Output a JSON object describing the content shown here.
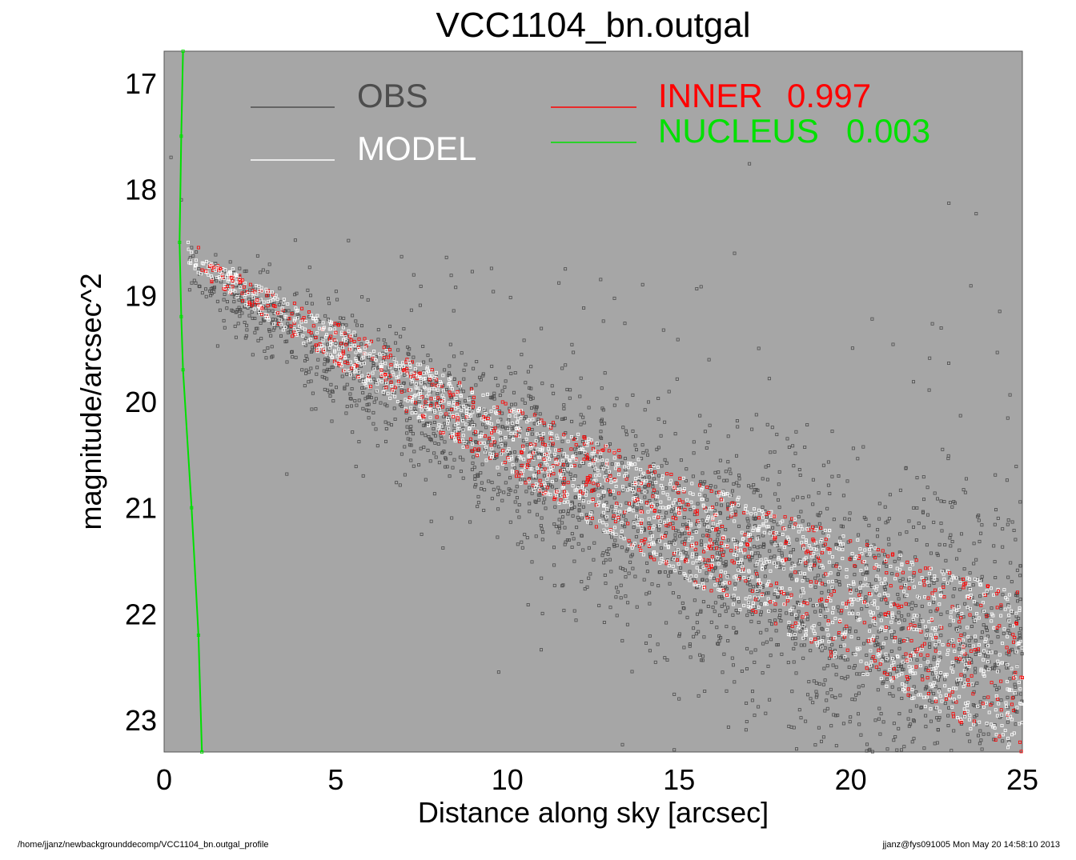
{
  "chart_data": {
    "type": "scatter",
    "title": "VCC1104_bn.outgal",
    "xlabel": "Distance along sky [arcsec]",
    "ylabel": "magnitude/arcsec^2",
    "xlim": [
      0,
      25
    ],
    "ylim": [
      16.7,
      23.3
    ],
    "y_inverted": true,
    "xticks": [
      0,
      5,
      10,
      15,
      20,
      25
    ],
    "yticks": [
      17,
      18,
      19,
      20,
      21,
      22,
      23
    ],
    "background": "#a6a6a6",
    "legend": [
      {
        "name": "OBS",
        "color": "#4d4d4d"
      },
      {
        "name": "MODEL",
        "color": "#ffffff"
      },
      {
        "name": "INNER",
        "value": "0.997",
        "color": "#ff0000"
      },
      {
        "name": "NUCLEUS",
        "value": "0.003",
        "color": "#00e000"
      }
    ],
    "series": [
      {
        "name": "OBS",
        "color": "#4d4d4d",
        "points": [
          [
            0.2,
            17.7
          ],
          [
            0.5,
            18.1
          ],
          [
            0.8,
            18.55
          ],
          [
            1.5,
            18.7
          ],
          [
            2.5,
            18.95
          ],
          [
            3.5,
            19.15
          ],
          [
            5,
            19.45
          ],
          [
            7,
            19.75
          ],
          [
            10,
            20.25
          ],
          [
            12,
            20.55
          ],
          [
            14,
            20.9
          ],
          [
            16,
            21.15
          ],
          [
            18,
            21.45
          ],
          [
            20,
            21.75
          ],
          [
            22,
            22.1
          ],
          [
            24,
            22.4
          ],
          [
            25,
            22.6
          ],
          [
            4.1,
            19.85
          ],
          [
            5.8,
            20.7
          ],
          [
            7.5,
            21.25
          ],
          [
            11,
            21.2
          ],
          [
            13.5,
            22.1
          ],
          [
            15,
            22.8
          ],
          [
            19.5,
            22.95
          ],
          [
            23,
            23.1
          ],
          [
            24.8,
            21.3
          ],
          [
            22.9,
            20.95
          ]
        ]
      },
      {
        "name": "MODEL",
        "color": "#ffffff",
        "points": [
          [
            0.7,
            18.5
          ],
          [
            2,
            18.75
          ],
          [
            4,
            19.25
          ],
          [
            6,
            19.55
          ],
          [
            8,
            19.85
          ],
          [
            10,
            20.2
          ],
          [
            12,
            20.55
          ],
          [
            14,
            20.85
          ],
          [
            16,
            21.15
          ],
          [
            18,
            21.5
          ],
          [
            20,
            21.8
          ],
          [
            22,
            22.15
          ],
          [
            24,
            22.45
          ],
          [
            25,
            22.6
          ]
        ]
      },
      {
        "name": "INNER",
        "color": "#ff0000",
        "points": [
          [
            1,
            18.55
          ],
          [
            3,
            19.0
          ],
          [
            5,
            19.35
          ],
          [
            7,
            19.7
          ],
          [
            9,
            20.05
          ],
          [
            11,
            20.35
          ],
          [
            13,
            20.7
          ],
          [
            15,
            21.05
          ],
          [
            17,
            21.35
          ],
          [
            19,
            21.7
          ],
          [
            21,
            22.0
          ],
          [
            23,
            22.3
          ],
          [
            25,
            22.6
          ]
        ]
      },
      {
        "name": "NUCLEUS",
        "color": "#00e000",
        "points": [
          [
            0.55,
            16.7
          ],
          [
            0.5,
            17.5
          ],
          [
            0.45,
            18.5
          ],
          [
            0.5,
            19.2
          ],
          [
            0.55,
            19.7
          ],
          [
            0.8,
            21.0
          ],
          [
            1.0,
            22.2
          ],
          [
            1.1,
            23.3
          ]
        ]
      }
    ]
  },
  "footer": {
    "left": "/home/jjanz/newbackgrounddecomp/VCC1104_bn.outgal_profile",
    "right": "jjanz@fys091005  Mon May 20 14:58:10 2013"
  }
}
